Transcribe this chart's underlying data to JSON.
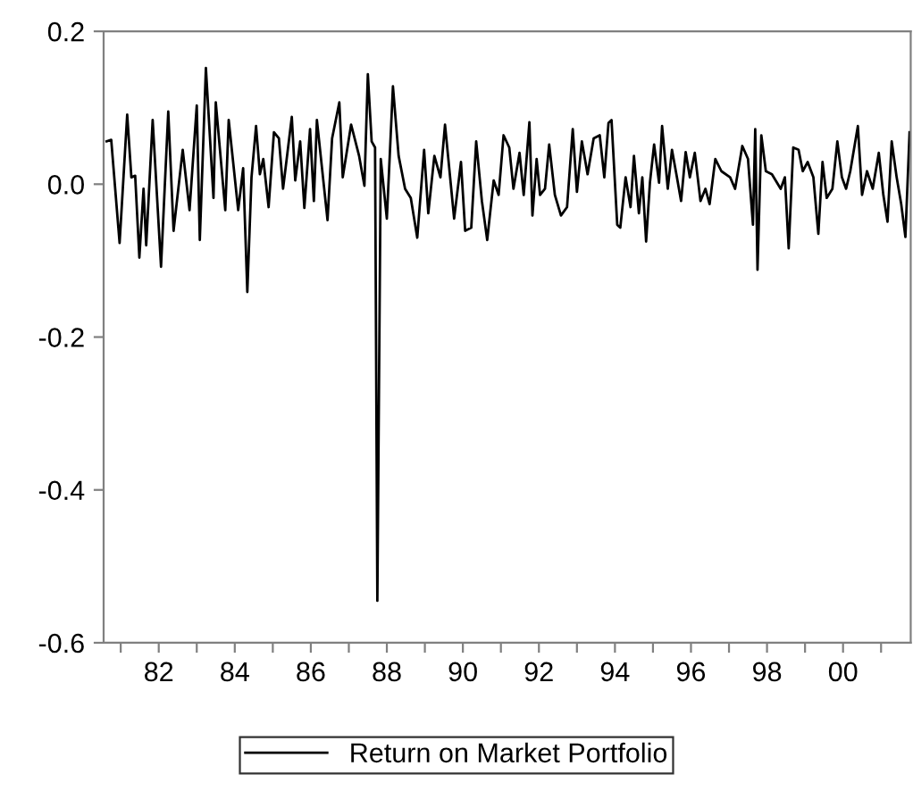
{
  "chart_data": {
    "type": "line",
    "legend": "bottom",
    "grid": false,
    "marker": "none",
    "line_style": "solid",
    "xlim": [
      1980.55,
      2001.78
    ],
    "ylim": [
      -0.6,
      0.2
    ],
    "yticks": [
      {
        "value": 0.2,
        "label": "0.2"
      },
      {
        "value": 0.0,
        "label": "0.0"
      },
      {
        "value": -0.2,
        "label": "-0.2"
      },
      {
        "value": -0.4,
        "label": "-0.4"
      },
      {
        "value": -0.6,
        "label": "-0.6"
      }
    ],
    "xticks": [
      {
        "value": 1981,
        "label": null
      },
      {
        "value": 1982,
        "label": "82"
      },
      {
        "value": 1983,
        "label": null
      },
      {
        "value": 1984,
        "label": "84"
      },
      {
        "value": 1985,
        "label": null
      },
      {
        "value": 1986,
        "label": "86"
      },
      {
        "value": 1987,
        "label": null
      },
      {
        "value": 1988,
        "label": "88"
      },
      {
        "value": 1989,
        "label": null
      },
      {
        "value": 1990,
        "label": "90"
      },
      {
        "value": 1991,
        "label": null
      },
      {
        "value": 1992,
        "label": "92"
      },
      {
        "value": 1993,
        "label": null
      },
      {
        "value": 1994,
        "label": "94"
      },
      {
        "value": 1995,
        "label": null
      },
      {
        "value": 1996,
        "label": "96"
      },
      {
        "value": 1997,
        "label": null
      },
      {
        "value": 1998,
        "label": "98"
      },
      {
        "value": 1999,
        "label": null
      },
      {
        "value": 2000,
        "label": "00"
      },
      {
        "value": 2001,
        "label": null
      }
    ],
    "series": [
      {
        "name": "Return on Market Portfolio",
        "color": "#000000",
        "x": [
          1980.63,
          1980.75,
          1980.97,
          1981.17,
          1981.28,
          1981.38,
          1981.49,
          1981.6,
          1981.67,
          1981.84,
          1982.06,
          1982.25,
          1982.39,
          1982.63,
          1982.81,
          1983.0,
          1983.08,
          1983.24,
          1983.44,
          1983.5,
          1983.75,
          1983.84,
          1984.09,
          1984.22,
          1984.33,
          1984.44,
          1984.56,
          1984.66,
          1984.75,
          1984.89,
          1985.03,
          1985.16,
          1985.27,
          1985.5,
          1985.59,
          1985.72,
          1985.83,
          1985.98,
          1986.08,
          1986.16,
          1986.44,
          1986.56,
          1986.75,
          1986.84,
          1987.06,
          1987.27,
          1987.41,
          1987.5,
          1987.6,
          1987.69,
          1987.75,
          1987.84,
          1988.0,
          1988.16,
          1988.31,
          1988.48,
          1988.63,
          1988.8,
          1988.98,
          1989.09,
          1989.25,
          1989.41,
          1989.53,
          1989.77,
          1989.95,
          1990.06,
          1990.22,
          1990.35,
          1990.5,
          1990.64,
          1990.81,
          1990.94,
          1991.07,
          1991.22,
          1991.33,
          1991.49,
          1991.6,
          1991.75,
          1991.83,
          1991.94,
          1992.03,
          1992.16,
          1992.27,
          1992.42,
          1992.58,
          1992.74,
          1992.89,
          1993.0,
          1993.13,
          1993.28,
          1993.44,
          1993.6,
          1993.72,
          1993.83,
          1993.91,
          1994.06,
          1994.14,
          1994.28,
          1994.41,
          1994.5,
          1994.63,
          1994.72,
          1994.82,
          1994.92,
          1995.03,
          1995.16,
          1995.24,
          1995.39,
          1995.5,
          1995.63,
          1995.74,
          1995.86,
          1995.97,
          1996.1,
          1996.25,
          1996.38,
          1996.49,
          1996.64,
          1996.8,
          1997.03,
          1997.16,
          1997.35,
          1997.5,
          1997.63,
          1997.69,
          1997.75,
          1997.85,
          1997.97,
          1998.13,
          1998.36,
          1998.47,
          1998.57,
          1998.69,
          1998.83,
          1998.94,
          1999.07,
          1999.22,
          1999.35,
          1999.46,
          1999.57,
          1999.72,
          1999.85,
          1999.97,
          2000.08,
          2000.19,
          2000.39,
          2000.5,
          2000.63,
          2000.78,
          2000.94,
          2001.06,
          2001.17,
          2001.28,
          2001.41,
          2001.53,
          2001.64,
          2001.75
        ],
        "values": [
          0.056,
          0.058,
          -0.077,
          0.091,
          0.009,
          0.011,
          -0.096,
          -0.006,
          -0.08,
          0.084,
          -0.108,
          0.095,
          -0.061,
          0.045,
          -0.034,
          0.103,
          -0.073,
          0.152,
          -0.018,
          0.107,
          -0.034,
          0.084,
          -0.034,
          0.021,
          -0.141,
          0.009,
          0.076,
          0.013,
          0.033,
          -0.03,
          0.068,
          0.06,
          -0.006,
          0.088,
          0.005,
          0.056,
          -0.031,
          0.072,
          -0.022,
          0.084,
          -0.047,
          0.06,
          0.107,
          0.009,
          0.078,
          0.037,
          -0.002,
          0.144,
          0.056,
          0.048,
          -0.545,
          0.033,
          -0.045,
          0.128,
          0.037,
          -0.006,
          -0.018,
          -0.07,
          0.045,
          -0.038,
          0.037,
          0.009,
          0.078,
          -0.045,
          0.029,
          -0.061,
          -0.057,
          0.056,
          -0.022,
          -0.073,
          0.005,
          -0.014,
          0.064,
          0.048,
          -0.006,
          0.041,
          -0.014,
          0.081,
          -0.041,
          0.033,
          -0.014,
          -0.006,
          0.052,
          -0.014,
          -0.041,
          -0.03,
          0.072,
          -0.01,
          0.056,
          0.013,
          0.06,
          0.064,
          0.009,
          0.08,
          0.084,
          -0.053,
          -0.057,
          0.009,
          -0.03,
          0.037,
          -0.038,
          0.009,
          -0.075,
          0.002,
          0.052,
          0.002,
          0.076,
          -0.006,
          0.045,
          0.009,
          -0.022,
          0.042,
          0.009,
          0.041,
          -0.022,
          -0.006,
          -0.026,
          0.033,
          0.017,
          0.009,
          -0.006,
          0.05,
          0.033,
          -0.053,
          0.072,
          -0.112,
          0.064,
          0.017,
          0.013,
          -0.006,
          0.009,
          -0.084,
          0.048,
          0.045,
          0.017,
          0.029,
          0.009,
          -0.065,
          0.029,
          -0.018,
          -0.006,
          0.056,
          0.009,
          -0.006,
          0.017,
          0.076,
          -0.014,
          0.017,
          -0.006,
          0.041,
          -0.014,
          -0.049,
          0.056,
          0.009,
          -0.026,
          -0.069,
          0.068
        ]
      }
    ]
  }
}
